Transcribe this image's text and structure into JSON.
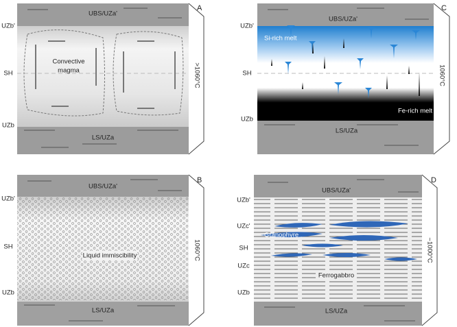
{
  "panels": [
    {
      "letter": "A",
      "temperature": ">1060°C",
      "top_label": "UBS/UZa'",
      "bottom_label": "LS/UZa",
      "side_labels": [
        "UZb'",
        "SH",
        "UZb"
      ],
      "annotations": [
        "Convective",
        "magma"
      ]
    },
    {
      "letter": "B",
      "temperature": "1060°C",
      "top_label": "UBS/UZa'",
      "bottom_label": "LS/UZa",
      "side_labels": [
        "UZb'",
        "SH",
        "UZb"
      ],
      "annotations": [
        "Liquid immiscibility"
      ]
    },
    {
      "letter": "C",
      "temperature": "1060°C",
      "top_label": "UBS/UZa'",
      "bottom_label": "LS/UZa",
      "side_labels": [
        "UZb'",
        "SH",
        "UZb"
      ],
      "annotations": [
        "Si-rich melt",
        "Fe-rich melt"
      ]
    },
    {
      "letter": "D",
      "temperature": "~1000°C",
      "top_label": "UBS/UZa'",
      "bottom_label": "LS/UZa",
      "side_labels": [
        "UZb'",
        "UZc'",
        "SH",
        "UZc",
        "UZb"
      ],
      "annotations": [
        "Granophyre",
        "Ferrogabbro"
      ]
    }
  ]
}
